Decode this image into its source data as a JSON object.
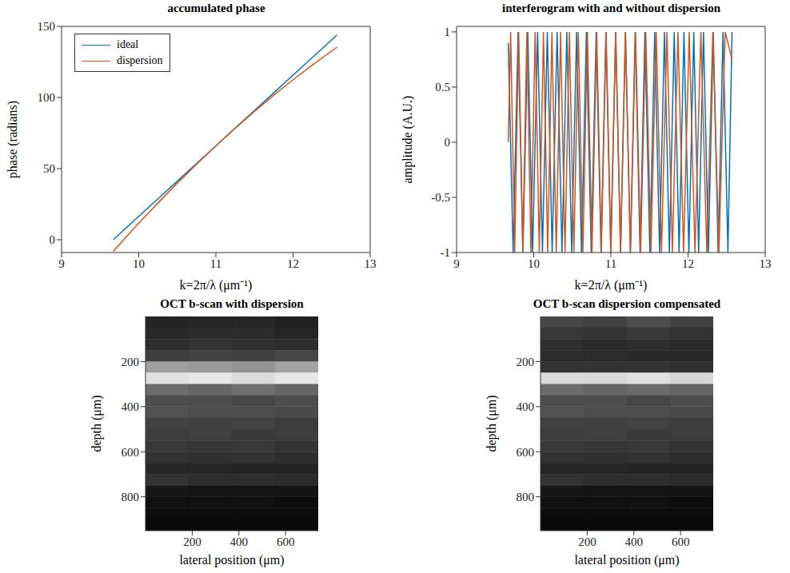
{
  "chart_data": [
    {
      "type": "line",
      "title": "accumulated phase",
      "x_label": "k=2π/λ (μm⁻¹)",
      "y_label": "phase (radians)",
      "xlim": [
        9,
        13
      ],
      "xticks": [
        9,
        10,
        11,
        12,
        13
      ],
      "ylim": [
        -9,
        150
      ],
      "yticks": [
        0,
        50,
        100,
        150
      ],
      "legend": "upper left",
      "series": [
        {
          "name": "ideal",
          "color": "#0072BD",
          "x": [
            9.67,
            10,
            10.25,
            10.5,
            10.75,
            11,
            11.25,
            11.5,
            11.75,
            12,
            12.25,
            12.57
          ],
          "values": [
            0,
            16.4,
            28.8,
            41.2,
            53.6,
            66,
            78.5,
            90.9,
            103.3,
            115.7,
            128.1,
            144
          ]
        },
        {
          "name": "dispersion",
          "color": "#D95319",
          "x": [
            9.67,
            10,
            10.25,
            10.5,
            10.75,
            11,
            11.25,
            11.5,
            11.75,
            12,
            12.25,
            12.57
          ],
          "values": [
            -8.2,
            11.6,
            25.9,
            39.8,
            53.1,
            66,
            78.4,
            90.2,
            101.6,
            112.5,
            122.8,
            135.4
          ]
        }
      ]
    },
    {
      "type": "line",
      "title": "interferogram with and without dispersion",
      "x_label": "k=2π/λ (μm⁻¹)",
      "y_label": "amplitude (A.U.)",
      "xlim": [
        9,
        13
      ],
      "xticks": [
        9,
        10,
        11,
        12,
        13
      ],
      "ylim": [
        -1,
        1.05
      ],
      "yticks": [
        -1,
        -0.5,
        0,
        0.5,
        1
      ],
      "series": [
        {
          "color": "#0072BD",
          "x": [
            9.67,
            9.733,
            9.797,
            9.86,
            9.923,
            9.986,
            10.05,
            10.113,
            10.176,
            10.239,
            10.303,
            10.366,
            10.429,
            10.492,
            10.556,
            10.619,
            10.682,
            10.745,
            10.809,
            10.872,
            10.935,
            10.998,
            11.062,
            11.125,
            11.188,
            11.252,
            11.315,
            11.378,
            11.441,
            11.505,
            11.568,
            11.631,
            11.694,
            11.758,
            11.821,
            11.884,
            11.947,
            12.011,
            12.074,
            12.137,
            12.2,
            12.264,
            12.327,
            12.39,
            12.453,
            12.517,
            12.57
          ],
          "values": [
            0.9,
            -1,
            1,
            -1,
            1,
            -1,
            1,
            -1,
            1,
            -1,
            1,
            -1,
            1,
            -1,
            1,
            -1,
            1,
            -1,
            1,
            -1,
            1,
            -1,
            1,
            -1,
            1,
            -1,
            1,
            -1,
            1,
            -1,
            1,
            -1,
            1,
            -1,
            1,
            -1,
            1,
            -1,
            1,
            -1,
            1,
            -1,
            1,
            -1,
            1,
            -1,
            1
          ]
        },
        {
          "color": "#D95319",
          "x": [
            9.67,
            9.701,
            9.753,
            9.805,
            9.858,
            9.911,
            9.964,
            10.018,
            10.072,
            10.126,
            10.181,
            10.236,
            10.292,
            10.348,
            10.405,
            10.462,
            10.52,
            10.578,
            10.637,
            10.696,
            10.755,
            10.816,
            10.876,
            10.938,
            11.0,
            11.062,
            11.126,
            11.189,
            11.254,
            11.319,
            11.385,
            11.452,
            11.519,
            11.587,
            11.656,
            11.726,
            11.797,
            11.869,
            11.942,
            12.015,
            12.09,
            12.166,
            12.243,
            12.321,
            12.4,
            12.481,
            12.57
          ],
          "values": [
            0,
            1,
            -1,
            1,
            -1,
            1,
            -1,
            1,
            -1,
            1,
            -1,
            1,
            -1,
            1,
            -1,
            1,
            -1,
            1,
            -1,
            1,
            -1,
            1,
            -1,
            1,
            -1,
            1,
            -1,
            1,
            -1,
            1,
            -1,
            1,
            -1,
            1,
            -1,
            1,
            -1,
            1,
            -1,
            1,
            -1,
            1,
            -1,
            1,
            -1,
            1,
            0.75
          ]
        }
      ]
    },
    {
      "type": "heatmap",
      "title": "OCT b-scan with dispersion",
      "x_label": "lateral position (μm)",
      "y_label": "depth (μm)",
      "xlim": [
        0,
        740
      ],
      "xticks": [
        200,
        400,
        600
      ],
      "ylim": [
        0,
        950
      ],
      "yticks": [
        200,
        400,
        600,
        800
      ],
      "x_edges": [
        0,
        185,
        370,
        555,
        740
      ],
      "y_edges": [
        0,
        50,
        100,
        150,
        200,
        250,
        300,
        350,
        400,
        450,
        500,
        550,
        600,
        650,
        700,
        750,
        800,
        850,
        900,
        950
      ],
      "cells": [
        [
          0.14,
          0.15,
          0.15,
          0.13
        ],
        [
          0.16,
          0.17,
          0.17,
          0.15
        ],
        [
          0.18,
          0.2,
          0.19,
          0.18
        ],
        [
          0.24,
          0.26,
          0.25,
          0.27
        ],
        [
          0.62,
          0.6,
          0.58,
          0.64
        ],
        [
          0.88,
          0.9,
          0.86,
          0.9
        ],
        [
          0.42,
          0.4,
          0.44,
          0.4
        ],
        [
          0.3,
          0.3,
          0.28,
          0.3
        ],
        [
          0.32,
          0.3,
          0.3,
          0.29
        ],
        [
          0.26,
          0.25,
          0.26,
          0.24
        ],
        [
          0.24,
          0.25,
          0.23,
          0.24
        ],
        [
          0.22,
          0.21,
          0.22,
          0.2
        ],
        [
          0.2,
          0.19,
          0.2,
          0.18
        ],
        [
          0.15,
          0.15,
          0.14,
          0.14
        ],
        [
          0.2,
          0.18,
          0.18,
          0.17
        ],
        [
          0.09,
          0.08,
          0.08,
          0.08
        ],
        [
          0.06,
          0.06,
          0.06,
          0.05
        ],
        [
          0.05,
          0.05,
          0.05,
          0.05
        ],
        [
          0.04,
          0.04,
          0.04,
          0.04
        ]
      ]
    },
    {
      "type": "heatmap",
      "title": "OCT b-scan dispersion compensated",
      "x_label": "lateral position (μm)",
      "y_label": "depth (μm)",
      "xlim": [
        0,
        740
      ],
      "xticks": [
        200,
        400,
        600
      ],
      "ylim": [
        0,
        950
      ],
      "yticks": [
        200,
        400,
        600,
        800
      ],
      "x_edges": [
        0,
        185,
        370,
        555,
        740
      ],
      "y_edges": [
        0,
        50,
        100,
        150,
        200,
        250,
        300,
        350,
        400,
        450,
        500,
        550,
        600,
        650,
        700,
        750,
        800,
        850,
        900,
        950
      ],
      "cells": [
        [
          0.28,
          0.25,
          0.3,
          0.26
        ],
        [
          0.22,
          0.2,
          0.22,
          0.2
        ],
        [
          0.18,
          0.17,
          0.18,
          0.17
        ],
        [
          0.17,
          0.17,
          0.16,
          0.16
        ],
        [
          0.2,
          0.2,
          0.2,
          0.19
        ],
        [
          0.86,
          0.85,
          0.88,
          0.84
        ],
        [
          0.42,
          0.4,
          0.42,
          0.4
        ],
        [
          0.3,
          0.3,
          0.28,
          0.3
        ],
        [
          0.32,
          0.3,
          0.3,
          0.29
        ],
        [
          0.26,
          0.25,
          0.26,
          0.24
        ],
        [
          0.24,
          0.25,
          0.23,
          0.24
        ],
        [
          0.22,
          0.21,
          0.22,
          0.2
        ],
        [
          0.2,
          0.19,
          0.2,
          0.18
        ],
        [
          0.15,
          0.15,
          0.14,
          0.14
        ],
        [
          0.2,
          0.18,
          0.18,
          0.17
        ],
        [
          0.09,
          0.08,
          0.08,
          0.08
        ],
        [
          0.06,
          0.06,
          0.06,
          0.05
        ],
        [
          0.05,
          0.05,
          0.05,
          0.05
        ],
        [
          0.04,
          0.04,
          0.04,
          0.04
        ]
      ]
    }
  ]
}
